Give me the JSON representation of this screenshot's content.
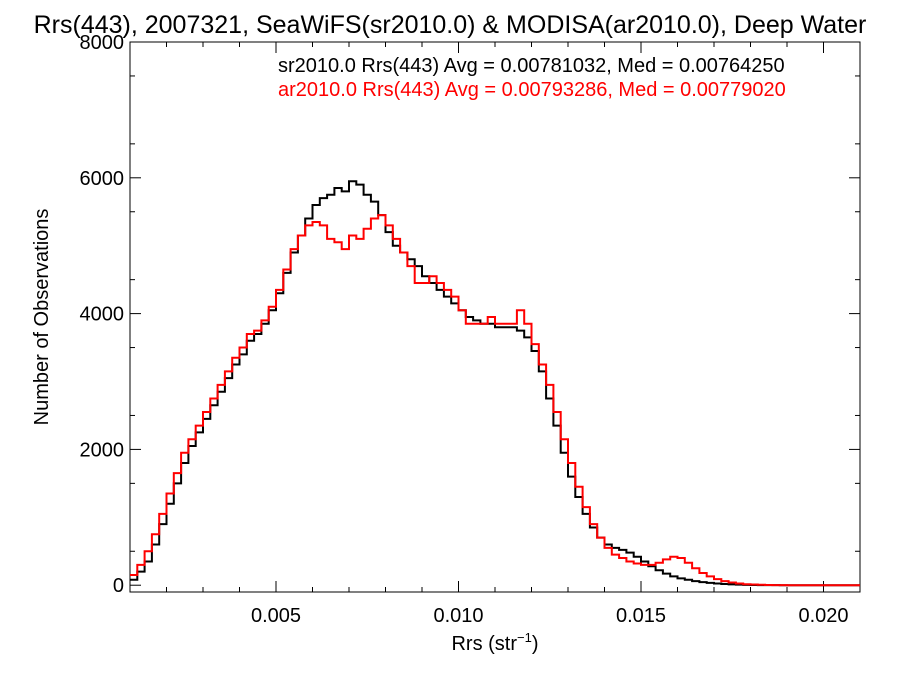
{
  "chart_data": {
    "type": "line",
    "step": true,
    "title": "Rrs(443), 2007321, SeaWiFS(sr2010.0) & MODISA(ar2010.0), Deep Water",
    "xlabel": "Rrs (str",
    "xlabel_sup": "−1",
    "xlabel_close": ")",
    "ylabel": "Number of Observations",
    "xlim": [
      0.001,
      0.021
    ],
    "ylim": [
      -100,
      8000
    ],
    "xticks": [
      0.005,
      0.01,
      0.015,
      0.02
    ],
    "xtick_labels": [
      "0.005",
      "0.010",
      "0.015",
      "0.020"
    ],
    "yticks": [
      0,
      2000,
      4000,
      6000,
      8000
    ],
    "ytick_labels": [
      "0",
      "2000",
      "4000",
      "6000",
      "8000"
    ],
    "legend_position": "top-right",
    "series": [
      {
        "name": "sr2010.0 Rrs(443) Avg = 0.00781032, Med = 0.00764250",
        "color": "#000000",
        "points": [
          [
            0.001,
            80
          ],
          [
            0.0012,
            200
          ],
          [
            0.0014,
            350
          ],
          [
            0.0016,
            600
          ],
          [
            0.0018,
            900
          ],
          [
            0.002,
            1200
          ],
          [
            0.0022,
            1500
          ],
          [
            0.0024,
            1800
          ],
          [
            0.0026,
            2050
          ],
          [
            0.0028,
            2250
          ],
          [
            0.003,
            2450
          ],
          [
            0.0032,
            2650
          ],
          [
            0.0034,
            2850
          ],
          [
            0.0036,
            3050
          ],
          [
            0.0038,
            3250
          ],
          [
            0.004,
            3400
          ],
          [
            0.0042,
            3600
          ],
          [
            0.0044,
            3700
          ],
          [
            0.0046,
            3850
          ],
          [
            0.0048,
            4050
          ],
          [
            0.005,
            4300
          ],
          [
            0.0052,
            4600
          ],
          [
            0.0054,
            4900
          ],
          [
            0.0056,
            5150
          ],
          [
            0.0058,
            5400
          ],
          [
            0.006,
            5600
          ],
          [
            0.0062,
            5700
          ],
          [
            0.0064,
            5750
          ],
          [
            0.0066,
            5850
          ],
          [
            0.0068,
            5800
          ],
          [
            0.007,
            5950
          ],
          [
            0.0072,
            5900
          ],
          [
            0.0074,
            5750
          ],
          [
            0.0076,
            5650
          ],
          [
            0.0078,
            5450
          ],
          [
            0.008,
            5200
          ],
          [
            0.0082,
            5000
          ],
          [
            0.0084,
            4900
          ],
          [
            0.0086,
            4800
          ],
          [
            0.0088,
            4700
          ],
          [
            0.009,
            4550
          ],
          [
            0.0092,
            4450
          ],
          [
            0.0094,
            4350
          ],
          [
            0.0096,
            4250
          ],
          [
            0.0098,
            4150
          ],
          [
            0.01,
            4050
          ],
          [
            0.0102,
            3950
          ],
          [
            0.0104,
            3900
          ],
          [
            0.0106,
            3850
          ],
          [
            0.0108,
            3850
          ],
          [
            0.011,
            3800
          ],
          [
            0.0112,
            3800
          ],
          [
            0.0114,
            3800
          ],
          [
            0.0116,
            3750
          ],
          [
            0.0118,
            3650
          ],
          [
            0.012,
            3450
          ],
          [
            0.0122,
            3150
          ],
          [
            0.0124,
            2750
          ],
          [
            0.0126,
            2350
          ],
          [
            0.0128,
            1950
          ],
          [
            0.013,
            1600
          ],
          [
            0.0132,
            1300
          ],
          [
            0.0134,
            1050
          ],
          [
            0.0136,
            850
          ],
          [
            0.0138,
            700
          ],
          [
            0.014,
            600
          ],
          [
            0.0142,
            550
          ],
          [
            0.0144,
            520
          ],
          [
            0.0146,
            480
          ],
          [
            0.0148,
            420
          ],
          [
            0.015,
            350
          ],
          [
            0.0152,
            280
          ],
          [
            0.0154,
            220
          ],
          [
            0.0156,
            170
          ],
          [
            0.0158,
            130
          ],
          [
            0.016,
            100
          ],
          [
            0.0162,
            80
          ],
          [
            0.0164,
            60
          ],
          [
            0.0166,
            45
          ],
          [
            0.0168,
            35
          ],
          [
            0.017,
            25
          ],
          [
            0.0172,
            18
          ],
          [
            0.0174,
            12
          ],
          [
            0.0176,
            8
          ],
          [
            0.0178,
            5
          ],
          [
            0.018,
            3
          ],
          [
            0.0182,
            2
          ],
          [
            0.0184,
            1
          ],
          [
            0.0186,
            1
          ],
          [
            0.0188,
            0
          ],
          [
            0.019,
            0
          ],
          [
            0.0192,
            0
          ],
          [
            0.0194,
            0
          ],
          [
            0.0196,
            0
          ],
          [
            0.0198,
            0
          ],
          [
            0.02,
            0
          ],
          [
            0.0202,
            0
          ],
          [
            0.0204,
            0
          ],
          [
            0.0206,
            0
          ],
          [
            0.0208,
            0
          ],
          [
            0.021,
            0
          ]
        ]
      },
      {
        "name": "ar2010.0 Rrs(443) Avg = 0.00793286, Med = 0.00779020",
        "color": "#ff0000",
        "points": [
          [
            0.001,
            150
          ],
          [
            0.0012,
            300
          ],
          [
            0.0014,
            500
          ],
          [
            0.0016,
            750
          ],
          [
            0.0018,
            1050
          ],
          [
            0.002,
            1350
          ],
          [
            0.0022,
            1650
          ],
          [
            0.0024,
            1950
          ],
          [
            0.0026,
            2150
          ],
          [
            0.0028,
            2350
          ],
          [
            0.003,
            2550
          ],
          [
            0.0032,
            2750
          ],
          [
            0.0034,
            2950
          ],
          [
            0.0036,
            3150
          ],
          [
            0.0038,
            3350
          ],
          [
            0.004,
            3500
          ],
          [
            0.0042,
            3700
          ],
          [
            0.0044,
            3750
          ],
          [
            0.0046,
            3900
          ],
          [
            0.0048,
            4100
          ],
          [
            0.005,
            4350
          ],
          [
            0.0052,
            4650
          ],
          [
            0.0054,
            4950
          ],
          [
            0.0056,
            5150
          ],
          [
            0.0058,
            5300
          ],
          [
            0.006,
            5350
          ],
          [
            0.0062,
            5300
          ],
          [
            0.0064,
            5100
          ],
          [
            0.0066,
            5050
          ],
          [
            0.0068,
            4950
          ],
          [
            0.007,
            5150
          ],
          [
            0.0072,
            5100
          ],
          [
            0.0074,
            5250
          ],
          [
            0.0076,
            5400
          ],
          [
            0.0078,
            5450
          ],
          [
            0.008,
            5300
          ],
          [
            0.0082,
            5100
          ],
          [
            0.0084,
            4900
          ],
          [
            0.0086,
            4700
          ],
          [
            0.0088,
            4450
          ],
          [
            0.009,
            4450
          ],
          [
            0.0092,
            4550
          ],
          [
            0.0094,
            4450
          ],
          [
            0.0096,
            4350
          ],
          [
            0.0098,
            4250
          ],
          [
            0.01,
            4050
          ],
          [
            0.0102,
            3850
          ],
          [
            0.0104,
            3850
          ],
          [
            0.0106,
            3850
          ],
          [
            0.0108,
            3950
          ],
          [
            0.011,
            3850
          ],
          [
            0.0112,
            3850
          ],
          [
            0.0114,
            3850
          ],
          [
            0.0116,
            4050
          ],
          [
            0.0118,
            3850
          ],
          [
            0.012,
            3550
          ],
          [
            0.0122,
            3250
          ],
          [
            0.0124,
            2950
          ],
          [
            0.0126,
            2550
          ],
          [
            0.0128,
            2150
          ],
          [
            0.013,
            1800
          ],
          [
            0.0132,
            1450
          ],
          [
            0.0134,
            1150
          ],
          [
            0.0136,
            900
          ],
          [
            0.0138,
            700
          ],
          [
            0.014,
            550
          ],
          [
            0.0142,
            450
          ],
          [
            0.0144,
            400
          ],
          [
            0.0146,
            350
          ],
          [
            0.0148,
            320
          ],
          [
            0.015,
            300
          ],
          [
            0.0152,
            300
          ],
          [
            0.0154,
            330
          ],
          [
            0.0156,
            380
          ],
          [
            0.0158,
            420
          ],
          [
            0.016,
            400
          ],
          [
            0.0162,
            330
          ],
          [
            0.0164,
            250
          ],
          [
            0.0166,
            180
          ],
          [
            0.0168,
            130
          ],
          [
            0.017,
            90
          ],
          [
            0.0172,
            60
          ],
          [
            0.0174,
            40
          ],
          [
            0.0176,
            25
          ],
          [
            0.0178,
            15
          ],
          [
            0.018,
            10
          ],
          [
            0.0182,
            6
          ],
          [
            0.0184,
            4
          ],
          [
            0.0186,
            2
          ],
          [
            0.0188,
            1
          ],
          [
            0.019,
            0
          ],
          [
            0.0192,
            0
          ],
          [
            0.0194,
            0
          ],
          [
            0.0196,
            0
          ],
          [
            0.0198,
            0
          ],
          [
            0.02,
            0
          ],
          [
            0.0202,
            0
          ],
          [
            0.0204,
            0
          ],
          [
            0.0206,
            0
          ],
          [
            0.0208,
            0
          ],
          [
            0.021,
            0
          ]
        ]
      }
    ]
  }
}
